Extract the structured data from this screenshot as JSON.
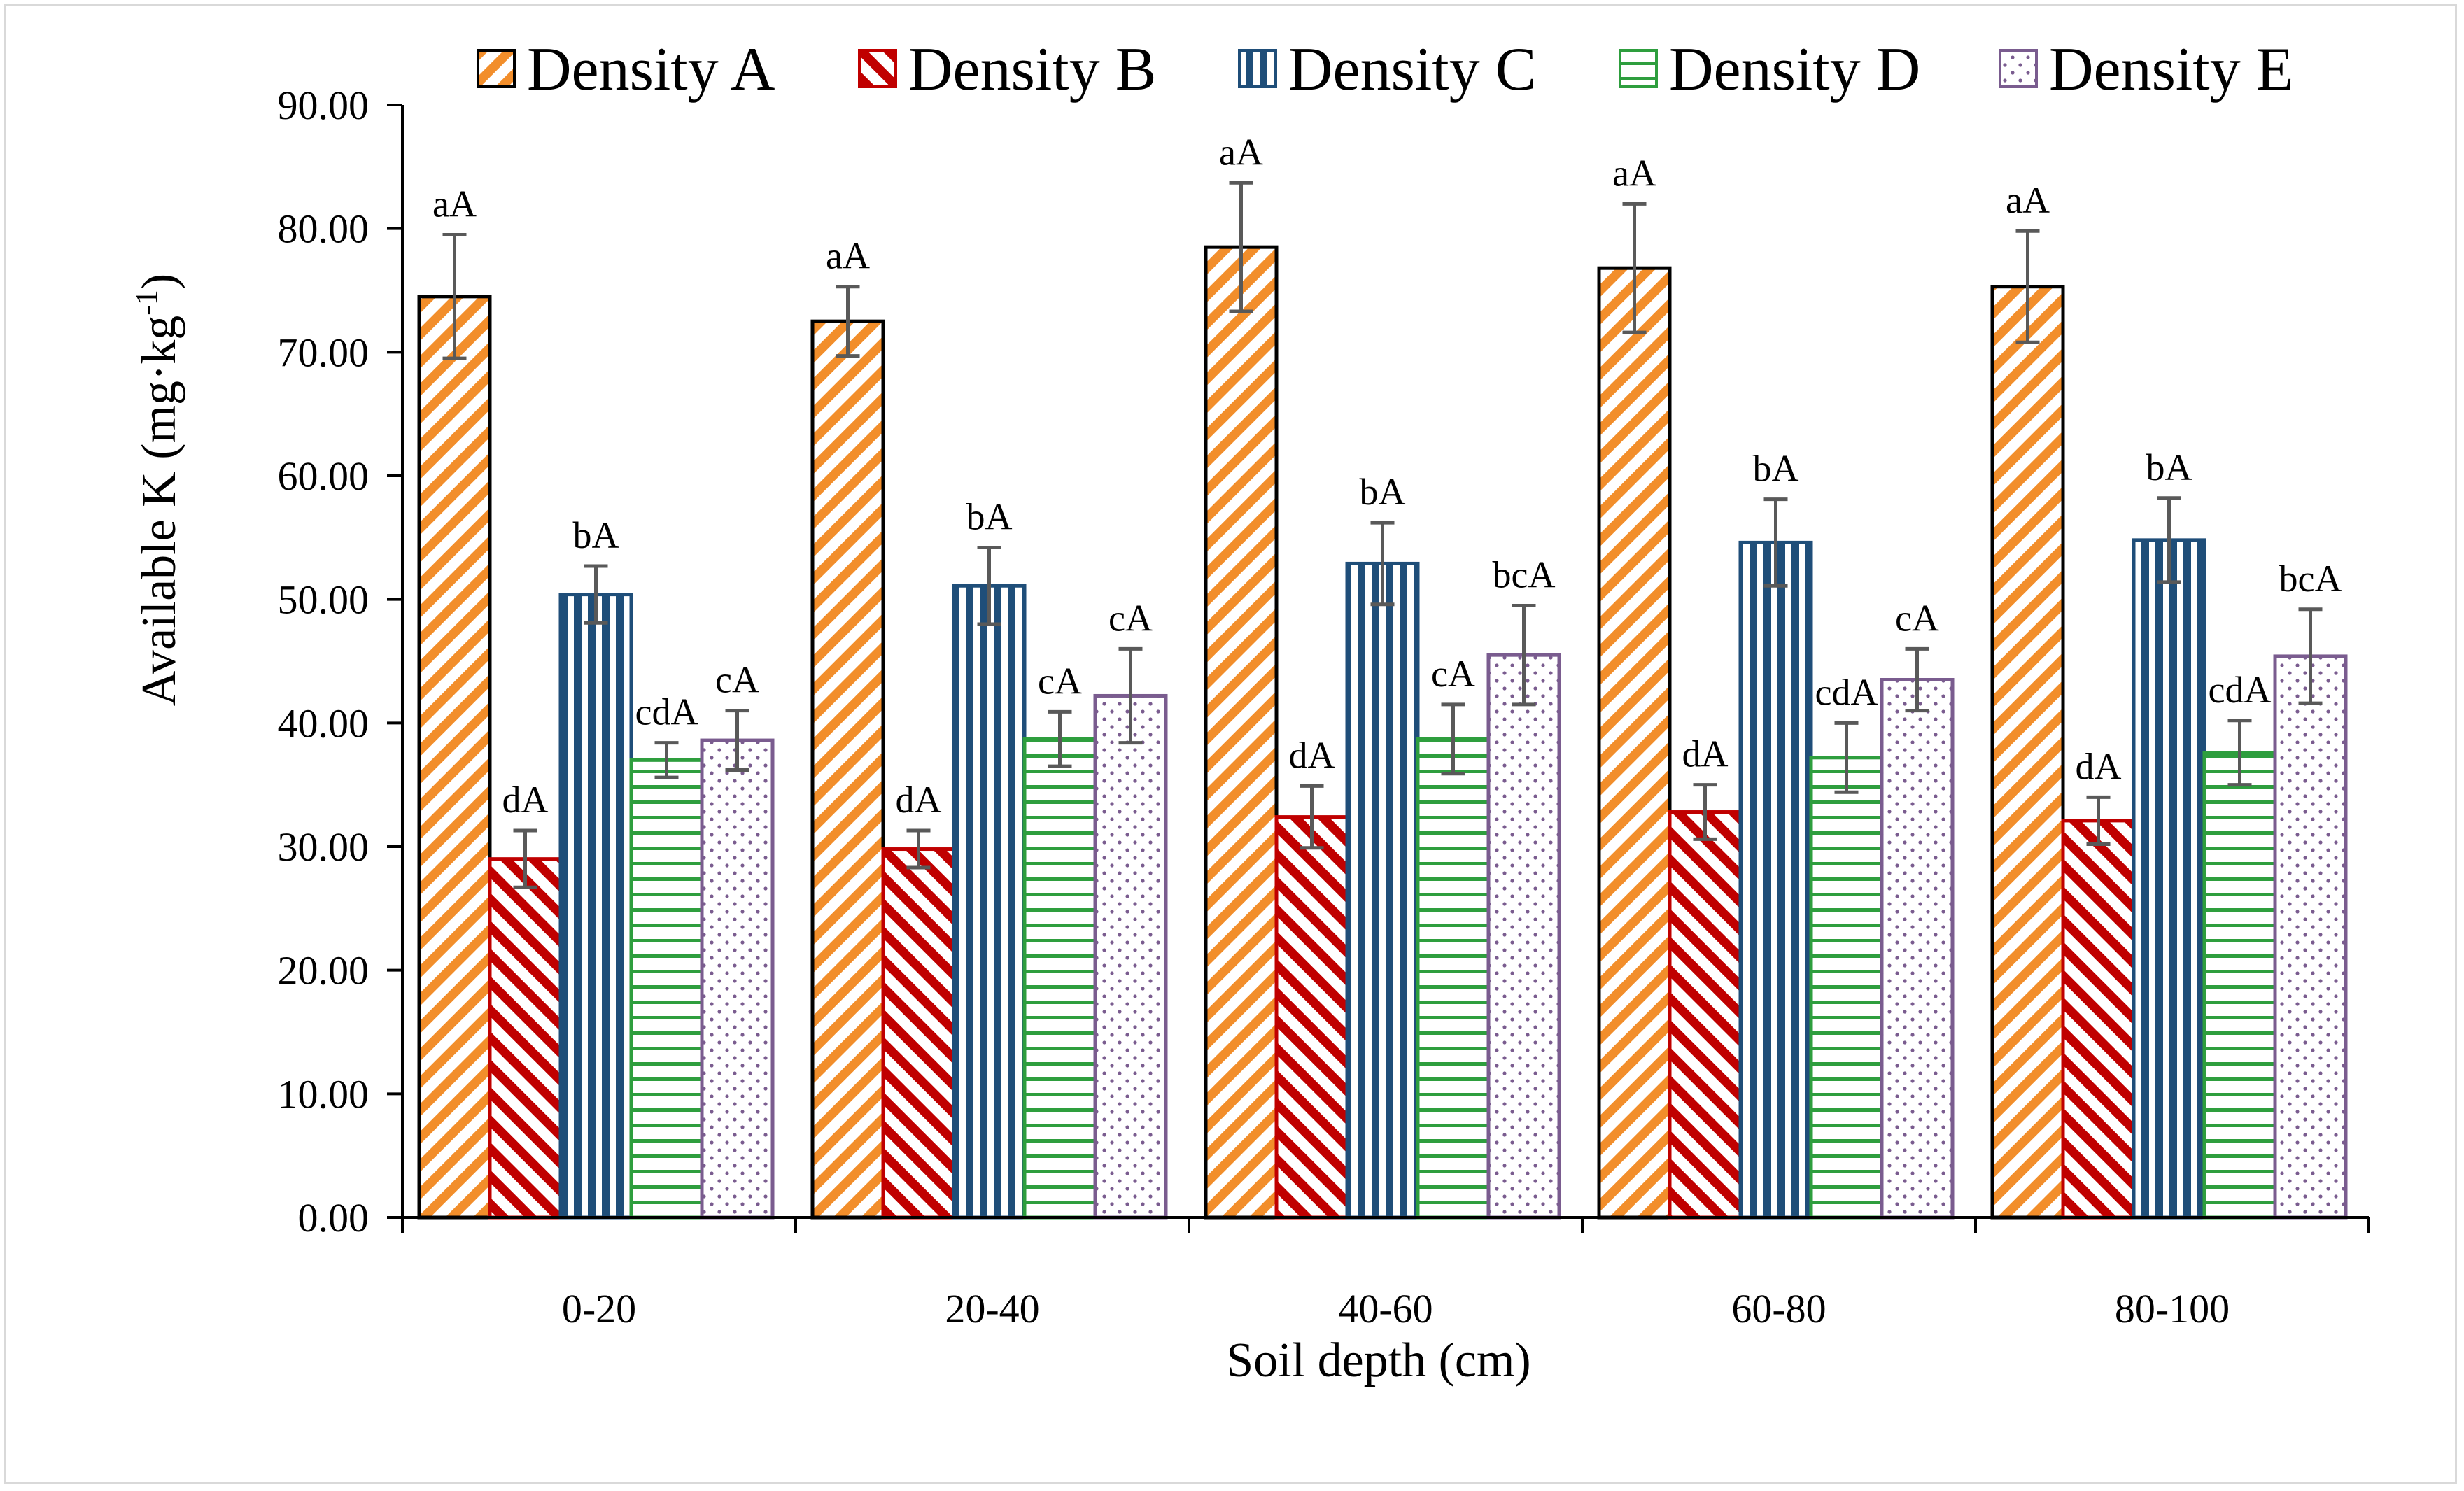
{
  "chart_data": {
    "type": "bar",
    "title": "",
    "xlabel": "Soil depth (cm)",
    "ylabel": "Available K (mg·kg",
    "ylabel_sup": "-1",
    "ylabel_close": ")",
    "ylim": [
      0,
      90
    ],
    "yticks": [
      0,
      10,
      20,
      30,
      40,
      50,
      60,
      70,
      80,
      90
    ],
    "ytick_labels": [
      "0.00",
      "10.00",
      "20.00",
      "30.00",
      "40.00",
      "50.00",
      "60.00",
      "70.00",
      "80.00",
      "90.00"
    ],
    "categories": [
      "0-20",
      "20-40",
      "40-60",
      "60-80",
      "80-100"
    ],
    "legend_position": "top",
    "grid": false,
    "series": [
      {
        "name": "Density A",
        "values": [
          74.5,
          72.5,
          78.5,
          76.8,
          75.3
        ],
        "errors": [
          5.0,
          2.8,
          5.2,
          5.2,
          4.5
        ],
        "labels": [
          "aA",
          "aA",
          "aA",
          "aA",
          "aA"
        ],
        "color": "#f28e2b",
        "pattern": "wide-upward-diagonal"
      },
      {
        "name": "Density B",
        "values": [
          29.0,
          29.8,
          32.4,
          32.8,
          32.1
        ],
        "errors": [
          2.3,
          1.5,
          2.5,
          2.2,
          1.9
        ],
        "labels": [
          "dA",
          "dA",
          "dA",
          "dA",
          "dA"
        ],
        "color": "#c00000",
        "pattern": "wide-downward-diagonal"
      },
      {
        "name": "Density C",
        "values": [
          50.4,
          51.1,
          52.9,
          54.6,
          54.8
        ],
        "errors": [
          2.3,
          3.1,
          3.3,
          3.5,
          3.4
        ],
        "labels": [
          "bA",
          "bA",
          "bA",
          "bA",
          "bA"
        ],
        "color": "#1f4e79",
        "pattern": "vertical-lines"
      },
      {
        "name": "Density D",
        "values": [
          37.0,
          38.7,
          38.7,
          37.2,
          37.6
        ],
        "errors": [
          1.4,
          2.2,
          2.8,
          2.8,
          2.6
        ],
        "labels": [
          "cdA",
          "cA",
          "cA",
          "cdA",
          "cdA"
        ],
        "color": "#2e9e3e",
        "pattern": "horizontal-lines"
      },
      {
        "name": "Density E",
        "values": [
          38.6,
          42.2,
          45.5,
          43.5,
          45.4
        ],
        "errors": [
          2.4,
          3.8,
          4.0,
          2.5,
          3.8
        ],
        "labels": [
          "cA",
          "cA",
          "bcA",
          "cA",
          "bcA"
        ],
        "color": "#7a5c8f",
        "pattern": "dots"
      }
    ],
    "error_bar_color": "#595959"
  }
}
